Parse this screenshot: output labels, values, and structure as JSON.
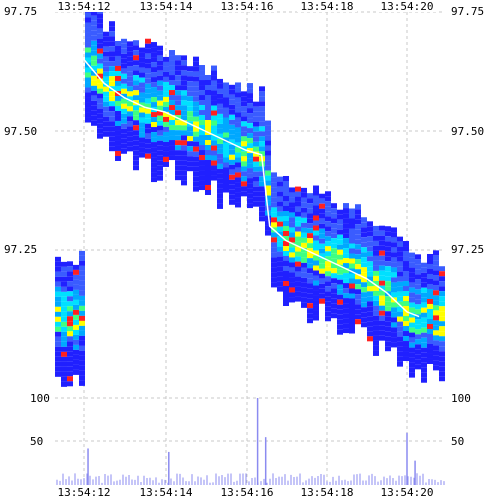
{
  "chart_data": {
    "type": "heatmap",
    "title": "",
    "xlabel": "",
    "ylabel": "",
    "x_ticks": [
      "13:54:12",
      "13:54:14",
      "13:54:16",
      "13:54:18",
      "13:54:20"
    ],
    "price_ticks": [
      "97.75",
      "97.50",
      "97.25"
    ],
    "volume_ticks": [
      "100",
      "50"
    ],
    "price_range": [
      97.0,
      97.75
    ],
    "volume_range": [
      0,
      100
    ],
    "grid": true,
    "mid_price": {
      "color": "#ffffff",
      "points": [
        [
          "13:54:12.0",
          97.65
        ],
        [
          "13:54:12.5",
          97.6
        ],
        [
          "13:54:13.0",
          97.57
        ],
        [
          "13:54:13.5",
          97.55
        ],
        [
          "13:54:14.0",
          97.54
        ],
        [
          "13:54:14.5",
          97.52
        ],
        [
          "13:54:15.0",
          97.5
        ],
        [
          "13:54:15.5",
          97.48
        ],
        [
          "13:54:16.0",
          97.46
        ],
        [
          "13:54:16.4",
          97.45
        ],
        [
          "13:54:16.6",
          97.3
        ],
        [
          "13:54:17.0",
          97.27
        ],
        [
          "13:54:17.5",
          97.25
        ],
        [
          "13:54:18.0",
          97.23
        ],
        [
          "13:54:18.5",
          97.21
        ],
        [
          "13:54:19.0",
          97.19
        ],
        [
          "13:54:19.5",
          97.16
        ],
        [
          "13:54:20.0",
          97.12
        ],
        [
          "13:54:20.3",
          97.11
        ]
      ]
    },
    "volume_bars": {
      "color": "#8b8bf0",
      "peaks": [
        {
          "t": "13:54:12.1",
          "v": 42
        },
        {
          "t": "13:54:14.1",
          "v": 38
        },
        {
          "t": "13:54:16.3",
          "v": 100
        },
        {
          "t": "13:54:16.5",
          "v": 55
        },
        {
          "t": "13:54:20.0",
          "v": 60
        },
        {
          "t": "13:54:20.2",
          "v": 28
        }
      ]
    },
    "colorscale": [
      "#2020ff",
      "#3a5cff",
      "#00a8ff",
      "#00e0ff",
      "#40ff80",
      "#ffff00",
      "#ff2020"
    ]
  }
}
